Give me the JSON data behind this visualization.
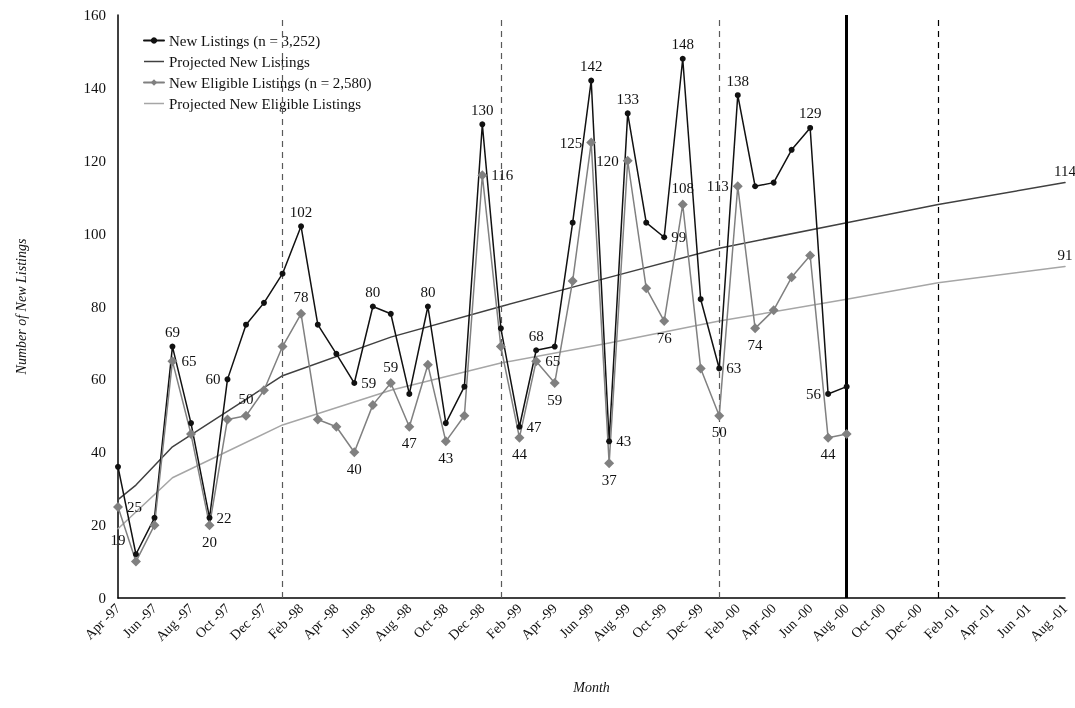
{
  "chart_data": {
    "type": "line",
    "xlabel": "Month",
    "ylabel": "Number of New Listings",
    "x": [
      "1997-04",
      "1997-05",
      "1997-06",
      "1997-07",
      "1997-08",
      "1997-09",
      "1997-10",
      "1997-11",
      "1997-12",
      "1998-01",
      "1998-02",
      "1998-03",
      "1998-04",
      "1998-05",
      "1998-06",
      "1998-07",
      "1998-08",
      "1998-09",
      "1998-10",
      "1998-11",
      "1998-12",
      "1999-01",
      "1999-02",
      "1999-03",
      "1999-04",
      "1999-05",
      "1999-06",
      "1999-07",
      "1999-08",
      "1999-09",
      "1999-10",
      "1999-11",
      "1999-12",
      "2000-01",
      "2000-02",
      "2000-03",
      "2000-04",
      "2000-05",
      "2000-06",
      "2000-07",
      "2000-08"
    ],
    "series": [
      {
        "name": "New Listings (n = 3,252)",
        "color": "#111111",
        "marker": "circle",
        "values": [
          36,
          12,
          22,
          69,
          48,
          22,
          60,
          75,
          81,
          89,
          102,
          75,
          67,
          59,
          80,
          78,
          56,
          80,
          48,
          58,
          130,
          74,
          47,
          68,
          69,
          103,
          142,
          43,
          133,
          103,
          99,
          148,
          82,
          63,
          138,
          113,
          114,
          123,
          129,
          56,
          58
        ],
        "value_labels": [
          null,
          null,
          null,
          "69",
          null,
          "22",
          "60",
          null,
          null,
          null,
          "102",
          null,
          null,
          "59",
          "80",
          null,
          null,
          "80",
          null,
          null,
          "130",
          null,
          "47",
          "68",
          null,
          null,
          "142",
          "43",
          "133",
          null,
          "99",
          "148",
          null,
          "63",
          "138",
          null,
          null,
          null,
          "129",
          "56",
          null
        ]
      },
      {
        "name": "Projected New Listings",
        "color": "#404040",
        "marker": "none",
        "x": [
          "1997-04",
          "1997-05",
          "1997-07",
          "1998-01",
          "1998-07",
          "1999-01",
          "1999-07",
          "2000-01",
          "2000-08",
          "2001-01",
          "2001-08"
        ],
        "values": [
          27,
          31,
          41.5,
          61,
          71.6,
          80,
          88,
          96,
          103,
          108,
          114
        ],
        "value_labels": [
          null,
          null,
          null,
          null,
          null,
          null,
          null,
          null,
          null,
          null,
          "114"
        ]
      },
      {
        "name": "New Eligible Listings (n = 2,580)",
        "color": "#808080",
        "marker": "diamond",
        "values": [
          25,
          10,
          20,
          65,
          45,
          20,
          49,
          50,
          57,
          69,
          78,
          49,
          47,
          40,
          53,
          59,
          47,
          64,
          43,
          50,
          116,
          69,
          44,
          65,
          59,
          87,
          125,
          37,
          120,
          85,
          76,
          108,
          63,
          50,
          113,
          74,
          79,
          88,
          94,
          44,
          45
        ],
        "value_labels": [
          "25",
          null,
          null,
          "65",
          null,
          "20",
          null,
          "50",
          null,
          null,
          "78",
          null,
          null,
          "40",
          null,
          "59",
          "47",
          null,
          "43",
          null,
          "116",
          null,
          "44",
          "65",
          "59",
          null,
          "125",
          "37",
          "120",
          null,
          "76",
          "108",
          null,
          "50",
          "113",
          "74",
          null,
          null,
          null,
          "44",
          null
        ]
      },
      {
        "name": "Projected New Eligible Listings",
        "color": "#a6a6a6",
        "marker": "none",
        "x": [
          "1997-04",
          "1997-07",
          "1998-01",
          "1998-07",
          "1999-01",
          "1999-07",
          "2000-01",
          "2000-08",
          "2001-01",
          "2001-08"
        ],
        "values": [
          19,
          33,
          47.5,
          57,
          64.5,
          70,
          76,
          82,
          86.5,
          91
        ],
        "value_labels": [
          "19",
          null,
          null,
          null,
          null,
          null,
          null,
          null,
          null,
          "91"
        ]
      }
    ],
    "xlim": [
      "1997-04",
      "2001-08"
    ],
    "xticks": [
      {
        "value": "1997-04",
        "label": "Apr -97"
      },
      {
        "value": "1997-06",
        "label": "Jun -97"
      },
      {
        "value": "1997-08",
        "label": "Aug -97"
      },
      {
        "value": "1997-10",
        "label": "Oct -97"
      },
      {
        "value": "1997-12",
        "label": "Dec -97"
      },
      {
        "value": "1998-02",
        "label": "Feb -98"
      },
      {
        "value": "1998-04",
        "label": "Apr -98"
      },
      {
        "value": "1998-06",
        "label": "Jun -98"
      },
      {
        "value": "1998-08",
        "label": "Aug -98"
      },
      {
        "value": "1998-10",
        "label": "Oct -98"
      },
      {
        "value": "1998-12",
        "label": "Dec -98"
      },
      {
        "value": "1999-02",
        "label": "Feb -99"
      },
      {
        "value": "1999-04",
        "label": "Apr -99"
      },
      {
        "value": "1999-06",
        "label": "Jun -99"
      },
      {
        "value": "1999-08",
        "label": "Aug -99"
      },
      {
        "value": "1999-10",
        "label": "Oct -99"
      },
      {
        "value": "1999-12",
        "label": "Dec -99"
      },
      {
        "value": "2000-02",
        "label": "Feb -00"
      },
      {
        "value": "2000-04",
        "label": "Apr -00"
      },
      {
        "value": "2000-06",
        "label": "Jun -00"
      },
      {
        "value": "2000-08",
        "label": "Aug -00"
      },
      {
        "value": "2000-10",
        "label": "Oct -00"
      },
      {
        "value": "2000-12",
        "label": "Dec -00"
      },
      {
        "value": "2001-02",
        "label": "Feb -01"
      },
      {
        "value": "2001-04",
        "label": "Apr -01"
      },
      {
        "value": "2001-06",
        "label": "Jun -01"
      },
      {
        "value": "2001-08",
        "label": "Aug -01"
      }
    ],
    "ylim": [
      0,
      160
    ],
    "yticks": [
      0,
      20,
      40,
      60,
      80,
      100,
      120,
      140,
      160
    ],
    "ref_lines": [
      {
        "axis": "x",
        "value": "1998-01",
        "color": "#595959",
        "line_style": "dashed"
      },
      {
        "axis": "x",
        "value": "1999-01",
        "color": "#595959",
        "line_style": "dashed"
      },
      {
        "axis": "x",
        "value": "2000-01",
        "color": "#595959",
        "line_style": "dashed"
      },
      {
        "axis": "x",
        "value": "2000-08",
        "color": "#000000",
        "line_style": "solid"
      },
      {
        "axis": "x",
        "value": "2001-01",
        "color": "#000000",
        "line_style": "dashed"
      }
    ],
    "grid": false,
    "legend": "top left",
    "line_style": "solid"
  }
}
